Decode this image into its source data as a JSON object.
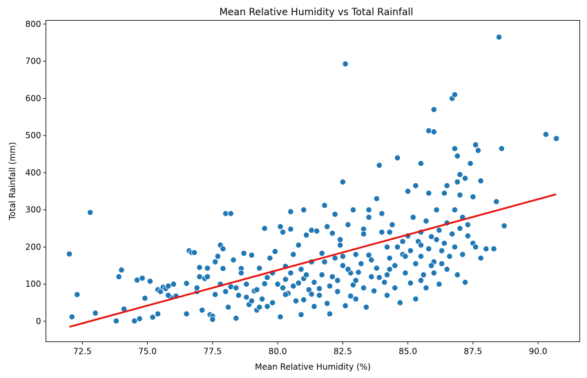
{
  "chart_data": {
    "type": "scatter",
    "title": "Mean Relative Humidity vs Total Rainfall",
    "xlabel": "Mean Relative Humidity (%)",
    "ylabel": "Total Rainfall (mm)",
    "xlim": [
      71.1,
      91.6
    ],
    "ylim": [
      -55,
      810
    ],
    "xticks": [
      72.5,
      75.0,
      77.5,
      80.0,
      82.5,
      85.0,
      87.5,
      90.0
    ],
    "xtick_labels": [
      "72.5",
      "75.0",
      "77.5",
      "80.0",
      "82.5",
      "85.0",
      "87.5",
      "90.0"
    ],
    "yticks": [
      0,
      100,
      200,
      300,
      400,
      500,
      600,
      700,
      800
    ],
    "ytick_labels": [
      "0",
      "100",
      "200",
      "300",
      "400",
      "500",
      "600",
      "700",
      "800"
    ],
    "grid": false,
    "point_color": "#1f77b4",
    "regression_color": "#e8120c",
    "regression_line": {
      "x": [
        72.0,
        90.7
      ],
      "y": [
        -15,
        342
      ]
    },
    "points": [
      [
        72.0,
        181
      ],
      [
        72.1,
        12
      ],
      [
        72.3,
        72
      ],
      [
        72.8,
        293
      ],
      [
        73.0,
        22
      ],
      [
        73.8,
        1
      ],
      [
        73.9,
        120
      ],
      [
        74.0,
        138
      ],
      [
        74.1,
        33
      ],
      [
        74.5,
        1
      ],
      [
        74.6,
        111
      ],
      [
        74.7,
        7
      ],
      [
        74.8,
        116
      ],
      [
        74.9,
        62
      ],
      [
        75.1,
        108
      ],
      [
        75.2,
        11
      ],
      [
        75.4,
        20
      ],
      [
        75.4,
        85
      ],
      [
        75.5,
        80
      ],
      [
        75.6,
        92
      ],
      [
        75.7,
        88
      ],
      [
        75.8,
        95
      ],
      [
        75.9,
        64
      ],
      [
        76.1,
        68
      ],
      [
        76.5,
        20
      ],
      [
        76.5,
        102
      ],
      [
        76.6,
        190
      ],
      [
        76.7,
        185
      ],
      [
        76.8,
        185
      ],
      [
        76.9,
        80
      ],
      [
        77.0,
        145
      ],
      [
        77.1,
        30
      ],
      [
        77.2,
        115
      ],
      [
        77.3,
        143
      ],
      [
        77.4,
        18
      ],
      [
        77.5,
        14
      ],
      [
        77.5,
        5
      ],
      [
        77.6,
        72
      ],
      [
        77.6,
        160
      ],
      [
        77.7,
        175
      ],
      [
        77.8,
        205
      ],
      [
        77.8,
        100
      ],
      [
        77.9,
        195
      ],
      [
        77.9,
        142
      ],
      [
        78.0,
        290
      ],
      [
        78.1,
        38
      ],
      [
        78.2,
        93
      ],
      [
        78.2,
        290
      ],
      [
        78.3,
        165
      ],
      [
        78.4,
        90
      ],
      [
        78.4,
        8
      ],
      [
        78.5,
        70
      ],
      [
        78.6,
        142
      ],
      [
        78.7,
        183
      ],
      [
        78.8,
        100
      ],
      [
        78.9,
        45
      ],
      [
        79.0,
        55
      ],
      [
        79.0,
        178
      ],
      [
        79.1,
        82
      ],
      [
        79.2,
        30
      ],
      [
        79.3,
        38
      ],
      [
        79.3,
        143
      ],
      [
        79.4,
        60
      ],
      [
        79.5,
        101
      ],
      [
        79.6,
        40
      ],
      [
        79.7,
        170
      ],
      [
        79.8,
        50
      ],
      [
        79.9,
        188
      ],
      [
        80.0,
        100
      ],
      [
        80.1,
        12
      ],
      [
        80.1,
        255
      ],
      [
        80.2,
        90
      ],
      [
        80.3,
        113
      ],
      [
        80.3,
        148
      ],
      [
        80.4,
        75
      ],
      [
        80.5,
        248
      ],
      [
        80.5,
        130
      ],
      [
        80.6,
        180
      ],
      [
        80.7,
        55
      ],
      [
        80.8,
        103
      ],
      [
        80.9,
        18
      ],
      [
        81.0,
        58
      ],
      [
        81.0,
        115
      ],
      [
        81.1,
        125
      ],
      [
        81.1,
        232
      ],
      [
        81.2,
        85
      ],
      [
        81.3,
        73
      ],
      [
        81.3,
        245
      ],
      [
        81.4,
        40
      ],
      [
        81.5,
        243
      ],
      [
        81.6,
        88
      ],
      [
        81.7,
        125
      ],
      [
        81.7,
        183
      ],
      [
        81.8,
        160
      ],
      [
        81.9,
        48
      ],
      [
        82.0,
        95
      ],
      [
        82.0,
        20
      ],
      [
        82.1,
        237
      ],
      [
        82.2,
        288
      ],
      [
        82.2,
        170
      ],
      [
        82.3,
        110
      ],
      [
        82.3,
        80
      ],
      [
        82.4,
        205
      ],
      [
        82.5,
        175
      ],
      [
        82.5,
        150
      ],
      [
        82.6,
        42
      ],
      [
        82.7,
        260
      ],
      [
        82.8,
        130
      ],
      [
        82.8,
        68
      ],
      [
        82.9,
        98
      ],
      [
        83.0,
        60
      ],
      [
        83.0,
        180
      ],
      [
        83.1,
        132
      ],
      [
        83.2,
        155
      ],
      [
        83.3,
        248
      ],
      [
        83.3,
        90
      ],
      [
        83.4,
        38
      ],
      [
        83.5,
        280
      ],
      [
        83.5,
        178
      ],
      [
        83.6,
        120
      ],
      [
        83.7,
        82
      ],
      [
        83.8,
        143
      ],
      [
        83.9,
        118
      ],
      [
        84.0,
        290
      ],
      [
        84.0,
        240
      ],
      [
        84.1,
        105
      ],
      [
        84.2,
        70
      ],
      [
        84.3,
        170
      ],
      [
        84.3,
        140
      ],
      [
        84.4,
        260
      ],
      [
        84.5,
        90
      ],
      [
        84.5,
        150
      ],
      [
        84.6,
        200
      ],
      [
        84.7,
        50
      ],
      [
        84.8,
        180
      ],
      [
        84.9,
        130
      ],
      [
        85.0,
        230
      ],
      [
        85.1,
        190
      ],
      [
        85.1,
        103
      ],
      [
        85.2,
        280
      ],
      [
        85.3,
        60
      ],
      [
        85.3,
        155
      ],
      [
        85.4,
        215
      ],
      [
        85.5,
        240
      ],
      [
        85.5,
        175
      ],
      [
        85.6,
        125
      ],
      [
        85.7,
        90
      ],
      [
        85.7,
        270
      ],
      [
        85.8,
        195
      ],
      [
        85.9,
        228
      ],
      [
        86.0,
        160
      ],
      [
        86.0,
        130
      ],
      [
        86.1,
        300
      ],
      [
        86.2,
        245
      ],
      [
        86.2,
        100
      ],
      [
        86.3,
        190
      ],
      [
        86.4,
        210
      ],
      [
        86.5,
        265
      ],
      [
        86.5,
        140
      ],
      [
        86.6,
        175
      ],
      [
        86.7,
        235
      ],
      [
        86.8,
        200
      ],
      [
        86.8,
        300
      ],
      [
        86.9,
        125
      ],
      [
        87.0,
        250
      ],
      [
        87.1,
        280
      ],
      [
        87.1,
        180
      ],
      [
        87.2,
        105
      ],
      [
        87.3,
        260
      ],
      [
        87.3,
        230
      ],
      [
        87.5,
        210
      ],
      [
        87.6,
        200
      ],
      [
        87.8,
        170
      ],
      [
        88.0,
        195
      ],
      [
        77.3,
        120
      ],
      [
        78.6,
        130
      ],
      [
        79.6,
        118
      ],
      [
        80.6,
        95
      ],
      [
        81.4,
        105
      ],
      [
        82.1,
        120
      ],
      [
        83.0,
        110
      ],
      [
        84.2,
        125
      ],
      [
        85.5,
        110
      ],
      [
        86.3,
        155
      ],
      [
        75.8,
        70
      ],
      [
        76.9,
        90
      ],
      [
        78.0,
        80
      ],
      [
        79.2,
        85
      ],
      [
        80.3,
        72
      ],
      [
        81.6,
        70
      ],
      [
        82.5,
        375
      ],
      [
        82.6,
        693
      ],
      [
        83.5,
        300
      ],
      [
        83.8,
        330
      ],
      [
        83.9,
        420
      ],
      [
        84.6,
        440
      ],
      [
        85.3,
        365
      ],
      [
        85.5,
        425
      ],
      [
        85.8,
        513
      ],
      [
        86.0,
        510
      ],
      [
        86.0,
        570
      ],
      [
        86.5,
        365
      ],
      [
        86.7,
        600
      ],
      [
        86.8,
        610
      ],
      [
        86.8,
        465
      ],
      [
        86.9,
        445
      ],
      [
        87.0,
        395
      ],
      [
        87.2,
        385
      ],
      [
        87.4,
        425
      ],
      [
        87.6,
        475
      ],
      [
        87.7,
        460
      ],
      [
        87.8,
        378
      ],
      [
        88.3,
        195
      ],
      [
        88.4,
        322
      ],
      [
        88.5,
        765
      ],
      [
        88.6,
        465
      ],
      [
        88.7,
        257
      ],
      [
        90.3,
        503
      ],
      [
        90.7,
        492
      ],
      [
        86.9,
        375
      ],
      [
        80.5,
        295
      ],
      [
        81.0,
        300
      ],
      [
        81.8,
        312
      ],
      [
        82.9,
        300
      ],
      [
        84.3,
        240
      ],
      [
        85.0,
        350
      ],
      [
        85.8,
        345
      ],
      [
        86.4,
        345
      ],
      [
        87.0,
        340
      ],
      [
        87.5,
        335
      ],
      [
        79.5,
        250
      ],
      [
        80.2,
        240
      ],
      [
        80.8,
        205
      ],
      [
        81.9,
        255
      ],
      [
        82.4,
        220
      ],
      [
        83.3,
        235
      ],
      [
        84.2,
        200
      ],
      [
        84.8,
        215
      ],
      [
        85.5,
        205
      ],
      [
        86.1,
        220
      ],
      [
        76.0,
        100
      ],
      [
        77.0,
        120
      ],
      [
        78.8,
        65
      ],
      [
        79.8,
        130
      ],
      [
        80.9,
        140
      ],
      [
        81.3,
        160
      ],
      [
        82.7,
        140
      ],
      [
        83.6,
        165
      ],
      [
        84.9,
        175
      ],
      [
        85.9,
        150
      ]
    ]
  }
}
